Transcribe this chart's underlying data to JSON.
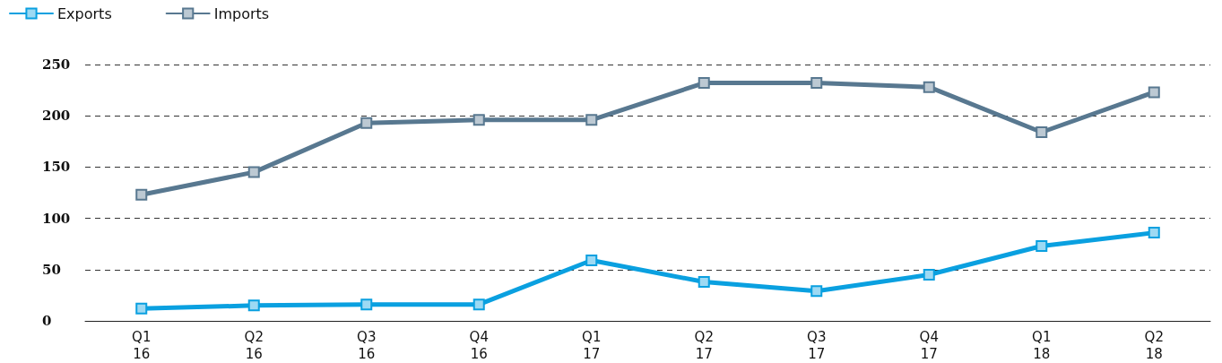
{
  "chart_data": {
    "type": "line",
    "categories": [
      "Q1\n16",
      "Q2\n16",
      "Q3\n16",
      "Q4\n16",
      "Q1\n17",
      "Q2\n17",
      "Q3\n17",
      "Q4\n17",
      "Q1\n18",
      "Q2\n18"
    ],
    "series": [
      {
        "name": "Exports",
        "color": "#0aa0e0",
        "values": [
          12,
          15,
          16,
          16,
          59,
          38,
          29,
          45,
          73,
          86
        ]
      },
      {
        "name": "Imports",
        "color": "#587890",
        "values": [
          123,
          145,
          193,
          196,
          196,
          232,
          232,
          228,
          184,
          223
        ]
      }
    ],
    "ylim": [
      0,
      250
    ],
    "yticks": [
      0,
      50,
      100,
      150,
      200,
      250
    ],
    "grid": "y",
    "legend": "top left",
    "marker": "square",
    "line_style": "solid"
  }
}
